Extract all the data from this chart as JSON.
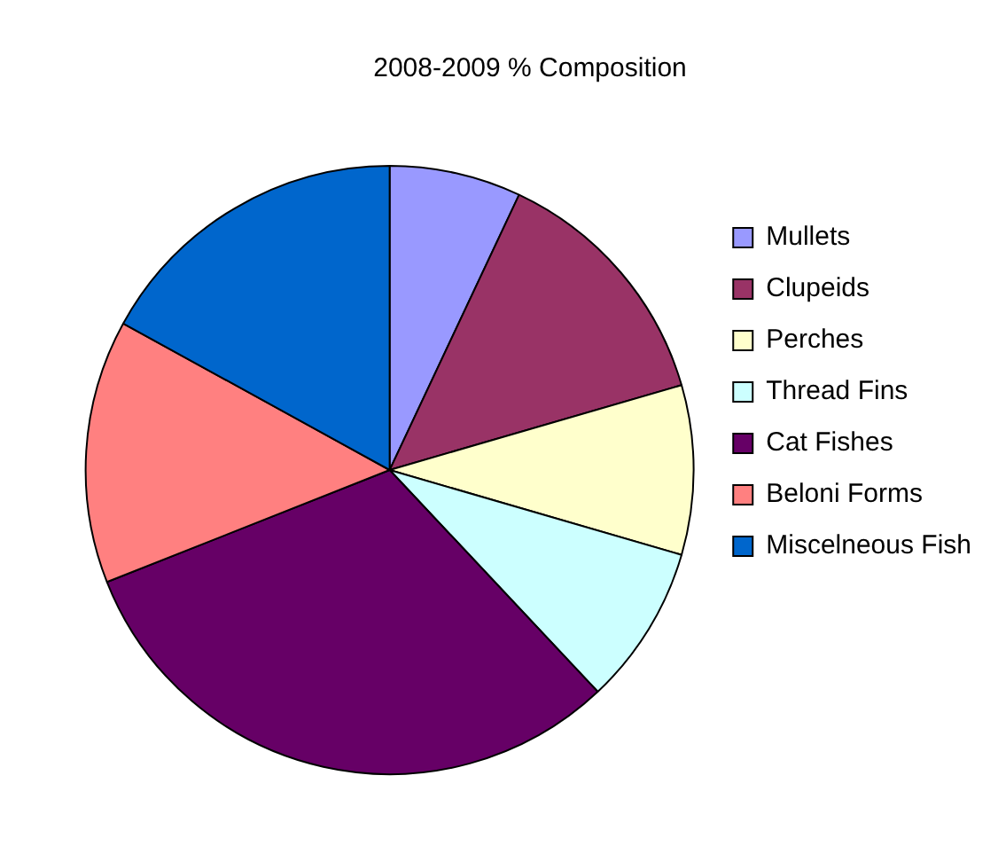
{
  "chart_data": {
    "type": "pie",
    "title": "2008-2009 % Composition",
    "categories": [
      "Mullets",
      "Clupeids",
      "Perches",
      "Thread Fins",
      "Cat Fishes",
      "Beloni Forms",
      "Miscelneous Fish"
    ],
    "values": [
      7,
      13.5,
      9,
      8.5,
      31,
      14,
      17
    ],
    "colors": [
      "#9999ff",
      "#993366",
      "#ffffcc",
      "#ccffff",
      "#660066",
      "#ff8080",
      "#0066cc"
    ],
    "legend": "right"
  }
}
